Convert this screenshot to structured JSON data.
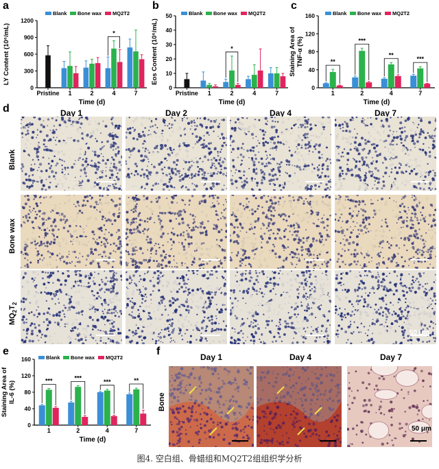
{
  "panels": {
    "a": "a",
    "b": "b",
    "c": "c",
    "d": "d",
    "e": "e",
    "f": "f"
  },
  "colors": {
    "blank": "#3a8fd6",
    "bonewax": "#2bb24c",
    "mq": "#e0245e",
    "pristine": "#111111",
    "scalebar": "#ffffff"
  },
  "legend": {
    "blank": "Blank",
    "bonewax": "Bone wax",
    "mq": "MQ2T2"
  },
  "chart_data": [
    {
      "id": "a",
      "type": "bar",
      "ylabel": "LY Content (10⁶/mL)",
      "xlabel": "Time (d)",
      "ylim": [
        0,
        1200
      ],
      "yticks": [
        "0",
        "300",
        "600",
        "900",
        "1200"
      ],
      "categories": [
        "Pristine",
        "1",
        "2",
        "4",
        "7"
      ],
      "pristine": {
        "value": 580,
        "err": 170
      },
      "series": [
        {
          "name": "Blank",
          "values": [
            null,
            350,
            360,
            350,
            720
          ],
          "err": [
            null,
            120,
            120,
            200,
            150
          ]
        },
        {
          "name": "Bone wax",
          "values": [
            null,
            390,
            430,
            700,
            650
          ],
          "err": [
            null,
            250,
            80,
            140,
            380
          ]
        },
        {
          "name": "MQ2T2",
          "values": [
            null,
            260,
            440,
            460,
            510
          ],
          "err": [
            null,
            120,
            100,
            220,
            80
          ]
        }
      ],
      "annotations": [
        {
          "group": "4",
          "text": "*"
        }
      ]
    },
    {
      "id": "b",
      "type": "bar",
      "ylabel": "Eos Content (10⁶/mL)",
      "xlabel": "Time (d)",
      "ylim": [
        0,
        50
      ],
      "yticks": [
        "0",
        "10",
        "20",
        "30",
        "40",
        "50"
      ],
      "categories": [
        "Pristine",
        "1",
        "2",
        "4",
        "7"
      ],
      "pristine": {
        "value": 6,
        "err": 4
      },
      "series": [
        {
          "name": "Blank",
          "values": [
            null,
            5,
            4,
            6,
            10
          ],
          "err": [
            null,
            6,
            2,
            2,
            4
          ]
        },
        {
          "name": "Bone wax",
          "values": [
            null,
            2,
            12,
            9,
            10
          ],
          "err": [
            null,
            1,
            10,
            7,
            4
          ]
        },
        {
          "name": "MQ2T2",
          "values": [
            null,
            1,
            2,
            12,
            8
          ],
          "err": [
            null,
            1,
            1,
            15,
            2
          ]
        }
      ],
      "annotations": [
        {
          "group": "2",
          "text": "*"
        }
      ]
    },
    {
      "id": "c",
      "type": "bar",
      "ylabel": "Staining Area of TNF-α (%)",
      "xlabel": "Time (d)",
      "ylim": [
        0,
        160
      ],
      "yticks": [
        "0",
        "40",
        "80",
        "120",
        "160"
      ],
      "categories": [
        "1",
        "2",
        "4",
        "7"
      ],
      "series": [
        {
          "name": "Blank",
          "values": [
            10,
            23,
            20,
            27
          ],
          "err": [
            1,
            3,
            2,
            3
          ]
        },
        {
          "name": "Bone wax",
          "values": [
            35,
            82,
            52,
            43
          ],
          "err": [
            6,
            6,
            4,
            4
          ]
        },
        {
          "name": "MQ2T2",
          "values": [
            5,
            12,
            26,
            9
          ],
          "err": [
            1,
            2,
            3,
            1
          ]
        }
      ],
      "annotations": [
        {
          "group": "1",
          "text": "**"
        },
        {
          "group": "2",
          "text": "***"
        },
        {
          "group": "4",
          "text": "**"
        },
        {
          "group": "7",
          "text": "***"
        }
      ]
    },
    {
      "id": "e",
      "type": "bar",
      "ylabel": "Staining Area of IL-6 (%)",
      "xlabel": "Time (d)",
      "ylim": [
        0,
        160
      ],
      "yticks": [
        "0",
        "40",
        "80",
        "120",
        "160"
      ],
      "categories": [
        "1",
        "2",
        "4",
        "7"
      ],
      "series": [
        {
          "name": "Blank",
          "values": [
            48,
            55,
            80,
            75
          ],
          "err": [
            2,
            3,
            2,
            3
          ]
        },
        {
          "name": "Bone wax",
          "values": [
            86,
            93,
            84,
            87
          ],
          "err": [
            3,
            3,
            3,
            3
          ]
        },
        {
          "name": "MQ2T2",
          "values": [
            42,
            20,
            22,
            28
          ],
          "err": [
            3,
            3,
            2,
            8
          ]
        }
      ],
      "annotations": [
        {
          "group": "1",
          "text": "***"
        },
        {
          "group": "2",
          "text": "***"
        },
        {
          "group": "4",
          "text": "***"
        },
        {
          "group": "7",
          "text": "**"
        }
      ]
    }
  ],
  "d": {
    "columns": [
      "Day 1",
      "Day 2",
      "Day 4",
      "Day 7"
    ],
    "rows": [
      "Blank",
      "Bone wax",
      "MQ2T2"
    ],
    "scale": "50 μm"
  },
  "f": {
    "columns": [
      "Day 1",
      "Day 4",
      "Day 7"
    ],
    "row": "Bone",
    "scale": "50 μm"
  },
  "caption": "图4. 空白组、骨蜡组和MQ2T2组组织学分析"
}
